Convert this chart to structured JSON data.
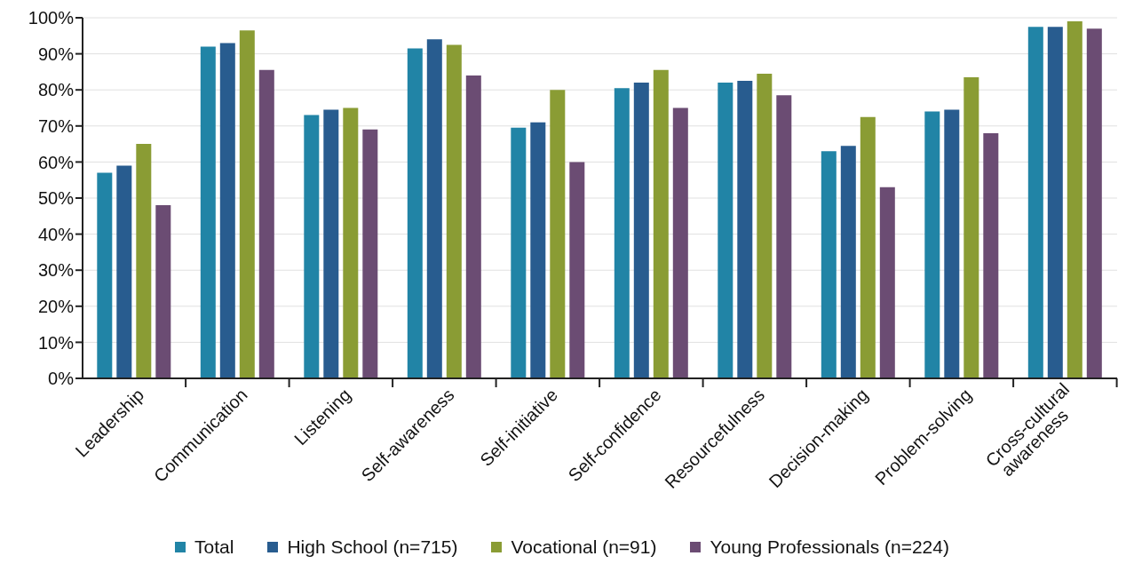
{
  "chart_data": {
    "type": "bar",
    "categories": [
      "Leadership",
      "Communication",
      "Listening",
      "Self-awareness",
      "Self-initiative",
      "Self-confidence",
      "Resourcefulness",
      "Decision-making",
      "Problem-solving",
      "Cross-cultural awareness"
    ],
    "series": [
      {
        "name": "Total",
        "color": "#2184a6",
        "values": [
          57,
          92,
          73,
          91.5,
          69.5,
          80.5,
          82,
          63,
          74,
          97.5
        ]
      },
      {
        "name": "High School (n=715)",
        "color": "#285c8f",
        "values": [
          59,
          93,
          74.5,
          94,
          71,
          82,
          82.5,
          64.5,
          74.5,
          97.5
        ]
      },
      {
        "name": "Vocational (n=91)",
        "color": "#8a9c34",
        "values": [
          65,
          96.5,
          75,
          92.5,
          80,
          85.5,
          84.5,
          72.5,
          83.5,
          99
        ]
      },
      {
        "name": "Young Professionals (n=224)",
        "color": "#6b4c73",
        "values": [
          48,
          85.5,
          69,
          84,
          60,
          75,
          78.5,
          53,
          68,
          97
        ]
      }
    ],
    "ylim": [
      0,
      100
    ],
    "yticks": [
      {
        "value": 0,
        "label": "0%"
      },
      {
        "value": 10,
        "label": "10%"
      },
      {
        "value": 20,
        "label": "20%"
      },
      {
        "value": 30,
        "label": "30%"
      },
      {
        "value": 40,
        "label": "40%"
      },
      {
        "value": 50,
        "label": "50%"
      },
      {
        "value": 60,
        "label": "60%"
      },
      {
        "value": 70,
        "label": "70%"
      },
      {
        "value": 80,
        "label": "80%"
      },
      {
        "value": 90,
        "label": "90%"
      },
      {
        "value": 100,
        "label": "100%"
      }
    ],
    "grid": "y",
    "legend": "bottom"
  }
}
